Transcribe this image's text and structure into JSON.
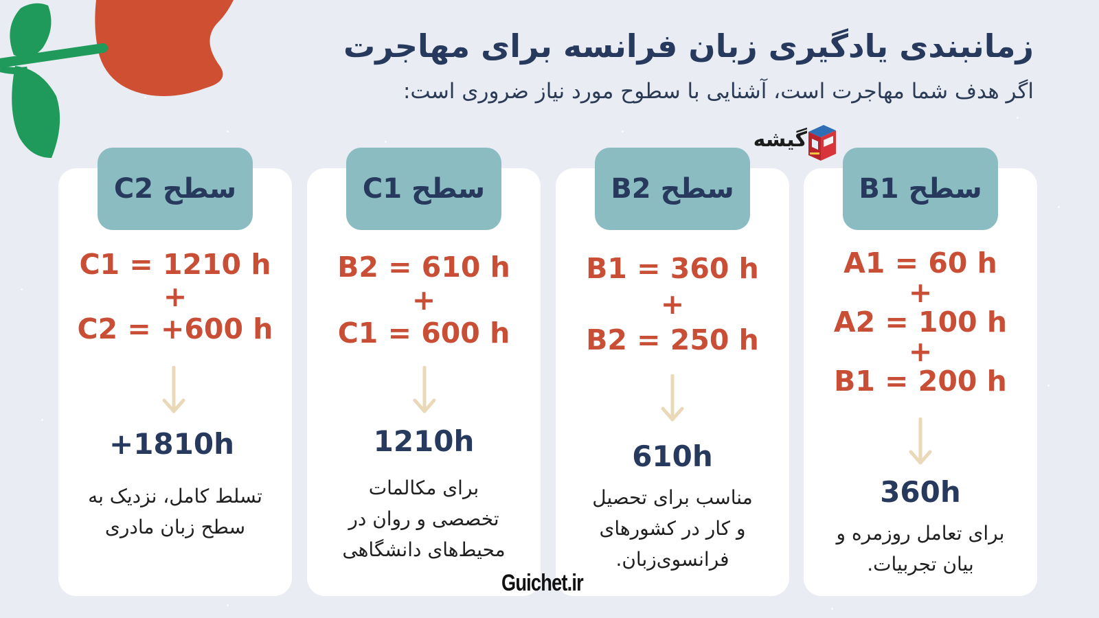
{
  "header": {
    "title": "زمانبندی یادگیری زبان فرانسه برای مهاجرت",
    "subtitle": "اگر هدف شما مهاجرت است، آشنایی با سطوح مورد نیاز ضروری است:"
  },
  "brand": {
    "name": "گیشه",
    "icon": "kiosk-icon",
    "website": "Guichet.ir"
  },
  "cards": [
    {
      "level": "سطح B1",
      "lines": [
        "A1 = 60 h",
        "+",
        "A2 = 100 h",
        "+",
        "B1 = 200 h"
      ],
      "total": "360h",
      "desc_lines": [
        "برای تعامل روزمره و",
        "بیان تجربیات."
      ]
    },
    {
      "level": "سطح B2",
      "lines": [
        "B1 = 360 h",
        "+",
        "B2 = 250 h"
      ],
      "total": "610h",
      "desc_lines": [
        "مناسب برای تحصیل",
        "و کار در کشورهای",
        "فرانسوی‌زبان."
      ]
    },
    {
      "level": "سطح C1",
      "lines": [
        "B2 = 610 h",
        "+",
        "C1 = 600 h"
      ],
      "total": "1210h",
      "desc_lines": [
        "برای مکالمات",
        "تخصصی و روان در",
        "محیط‌های دانشگاهی"
      ]
    },
    {
      "level": "سطح C2",
      "lines": [
        "C1 = 1210 h",
        "+",
        "C2 = +600 h"
      ],
      "total": "+1810h",
      "desc_lines": [
        "تسلط کامل، نزدیک به",
        "سطح زبان مادری"
      ]
    }
  ],
  "colors": {
    "background": "#e9edf3",
    "card": "#ffffff",
    "tab": "#8bbcc2",
    "navy": "#27395c",
    "hours_red": "#c94e36",
    "arrow": "#ead9b8",
    "leaf_green": "#1f9a5a",
    "flower_orange": "#cf4f32"
  }
}
